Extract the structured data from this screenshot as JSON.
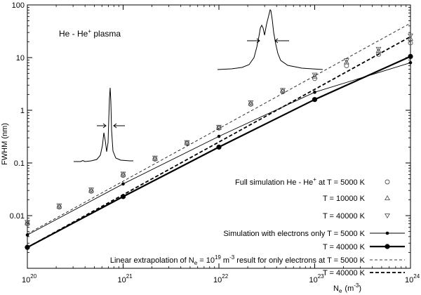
{
  "chart_data": {
    "type": "scatter",
    "xscale": "log",
    "yscale": "log",
    "xlim": [
      1e+20,
      1e+24
    ],
    "ylim": [
      0.001,
      100
    ],
    "xlabel": {
      "base": "N",
      "sub": "e",
      "units": "(m",
      "units_sup": "-3",
      "close": ")"
    },
    "ylabel": "FWHM  (nm)",
    "x_ticks": [
      {
        "value": 1e+20,
        "base": "10",
        "exp": "20"
      },
      {
        "value": 1e+21,
        "base": "10",
        "exp": "21"
      },
      {
        "value": 1e+22,
        "base": "10",
        "exp": "22"
      },
      {
        "value": 1e+23,
        "base": "10",
        "exp": "23"
      },
      {
        "value": 1e+24,
        "base": "10",
        "exp": "24"
      }
    ],
    "y_ticks": [
      {
        "value": 0.01,
        "label": "0.01"
      },
      {
        "value": 0.1,
        "label": "0.1"
      },
      {
        "value": 1,
        "label": "1"
      },
      {
        "value": 10,
        "label": "10"
      },
      {
        "value": 100,
        "label": "100"
      }
    ],
    "annotation": {
      "prefix": "He - He",
      "sup": "+",
      "suffix": " plasma"
    },
    "series": [
      {
        "name": "T = 5000 K",
        "legend_prefix": "Full simulation He - He",
        "legend_sup": "+",
        "legend_mid": " at T =   ",
        "legend_value": "5000 K",
        "style": "marker",
        "marker": "circle",
        "x": [
          1e+20,
          2.15e+20,
          4.64e+20,
          1e+21,
          2.15e+21,
          4.64e+21,
          1e+22,
          2.15e+22,
          4.64e+22,
          1e+23,
          2.15e+23,
          4.64e+23,
          1e+24
        ],
        "y": [
          0.007,
          0.0145,
          0.029,
          0.058,
          0.118,
          0.235,
          0.46,
          1.3,
          2.25,
          4.0,
          7.0,
          11.5,
          19.0
        ]
      },
      {
        "name": "T = 10000 K",
        "legend_label": "T = 10000 K",
        "style": "marker",
        "marker": "triangle-up",
        "x": [
          1e+20,
          2.15e+20,
          4.64e+20,
          1e+21,
          2.15e+21,
          4.64e+21,
          1e+22,
          2.15e+22,
          4.64e+22,
          1e+23,
          2.15e+23,
          4.64e+23,
          1e+24
        ],
        "y": [
          0.0073,
          0.015,
          0.03,
          0.06,
          0.121,
          0.24,
          0.47,
          1.35,
          2.35,
          4.4,
          8.2,
          13.5,
          23.0
        ]
      },
      {
        "name": "T = 40000 K",
        "legend_label": "T = 40000 K",
        "style": "marker",
        "marker": "triangle-down",
        "x": [
          1e+20,
          2.15e+20,
          4.64e+20,
          1e+21,
          2.15e+21,
          4.64e+21,
          1e+22,
          2.15e+22,
          4.64e+22,
          1e+23,
          2.15e+23,
          4.64e+23,
          1e+24
        ],
        "y": [
          0.0075,
          0.0155,
          0.031,
          0.062,
          0.125,
          0.245,
          0.48,
          1.4,
          2.4,
          4.7,
          8.8,
          14.5,
          26.0
        ]
      },
      {
        "name": "Simulation with electrons only T = 5000 K",
        "legend_label": "Simulation with electrons only T = 5000 K",
        "style": "line-dots-thin",
        "x": [
          1e+20,
          1e+21,
          1e+22,
          1e+23,
          1e+24
        ],
        "y": [
          0.0043,
          0.04,
          0.32,
          2.2,
          8.0
        ]
      },
      {
        "name": "Simulation with electrons only T = 40000 K",
        "legend_label": "T = 40000 K",
        "style": "line-dots-thick",
        "x": [
          1e+20,
          1e+21,
          1e+22,
          1e+23,
          1e+24
        ],
        "y": [
          0.0025,
          0.023,
          0.2,
          1.6,
          10.5
        ]
      },
      {
        "name": "Linear extrapolation T = 5000 K",
        "legend_prefix": "Linear extrapolation of  N",
        "legend_sub": "e",
        "legend_mid": " = 10",
        "legend_sup": "19",
        "legend_mid2": " m",
        "legend_sup2": "-3",
        "legend_suffix": " result for only electrons at T = 5000 K",
        "style": "dashed-thin",
        "x": [
          1e+20,
          1e+24
        ],
        "y": [
          0.0045,
          45.0
        ]
      },
      {
        "name": "Linear extrapolation T = 40000 K",
        "legend_label": "T = 40000 K",
        "style": "dashed-thick",
        "x": [
          1e+20,
          1e+24
        ],
        "y": [
          0.0025,
          25.0
        ]
      }
    ]
  }
}
